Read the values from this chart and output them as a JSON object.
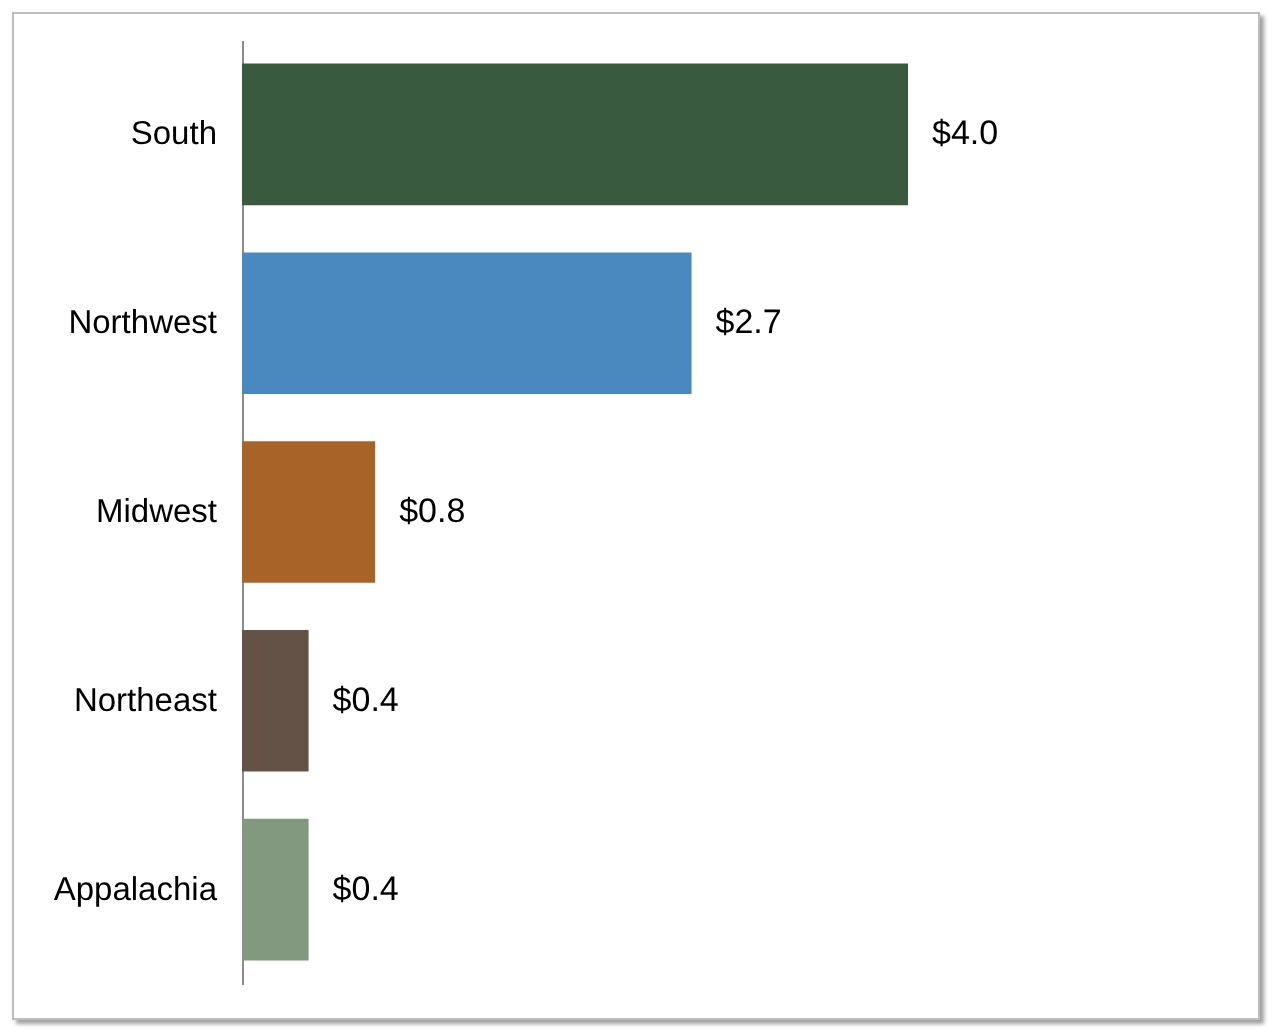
{
  "chart_data": {
    "type": "bar",
    "orientation": "horizontal",
    "categories": [
      "South",
      "Northwest",
      "Midwest",
      "Northeast",
      "Appalachia"
    ],
    "values": [
      4.0,
      2.7,
      0.8,
      0.4,
      0.4
    ],
    "colors": [
      "#3a5a40",
      "#4a89bf",
      "#a86428",
      "#645247",
      "#82987f"
    ],
    "value_labels": [
      "$4.0",
      "$2.7",
      "$0.8",
      "$0.4",
      "$0.4"
    ]
  }
}
